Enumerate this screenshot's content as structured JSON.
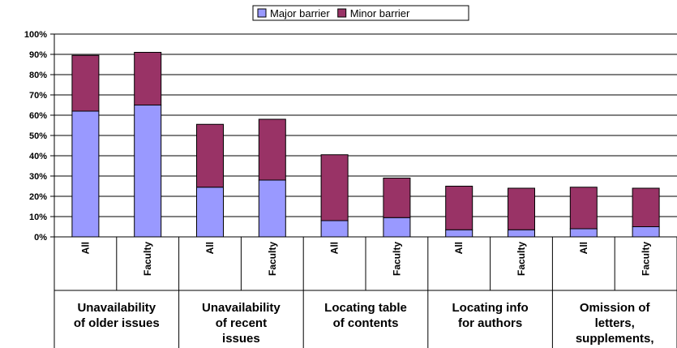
{
  "chart_data": {
    "type": "bar",
    "stacked": true,
    "title": "",
    "xlabel": "",
    "ylabel": "",
    "ylim": [
      0,
      100
    ],
    "yticks": [
      "0%",
      "10%",
      "20%",
      "30%",
      "40%",
      "50%",
      "60%",
      "70%",
      "80%",
      "90%",
      "100%"
    ],
    "grid": true,
    "legend": {
      "position": "top-center"
    },
    "categories": [
      "All",
      "Faculty",
      "All",
      "Faculty",
      "All",
      "Faculty",
      "All",
      "Faculty",
      "All",
      "Faculty"
    ],
    "groups": [
      {
        "label_lines": [
          "Unavailability",
          "of older issues"
        ]
      },
      {
        "label_lines": [
          "Unavailability",
          "of recent",
          "issues"
        ]
      },
      {
        "label_lines": [
          "Locating table",
          "of contents"
        ]
      },
      {
        "label_lines": [
          "Locating info",
          "for authors"
        ]
      },
      {
        "label_lines": [
          "Omission of",
          "letters,",
          "supplements,"
        ]
      }
    ],
    "series": [
      {
        "name": "Major barrier",
        "color": "#9999ff",
        "values": [
          62,
          65,
          24.5,
          28,
          8,
          9.5,
          3.5,
          3.5,
          4,
          5
        ]
      },
      {
        "name": "Minor barrier",
        "color": "#993366",
        "values": [
          27.5,
          26,
          31,
          30,
          32.5,
          19.5,
          21.5,
          20.5,
          20.5,
          19
        ]
      }
    ]
  }
}
